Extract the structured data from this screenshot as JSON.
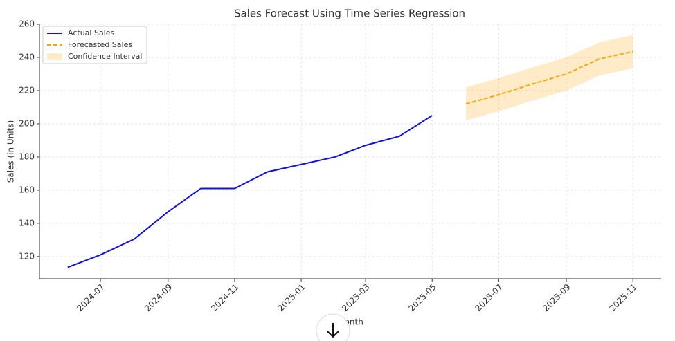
{
  "chart_data": {
    "type": "line",
    "title": "Sales Forecast Using Time Series Regression",
    "x_label": "Month",
    "y_label": "Sales (in Units)",
    "x": [
      "2024-06",
      "2024-07",
      "2024-08",
      "2024-09",
      "2024-10",
      "2024-11",
      "2024-12",
      "2025-01",
      "2025-02",
      "2025-03",
      "2025-04",
      "2025-05",
      "2025-06",
      "2025-07",
      "2025-08",
      "2025-09",
      "2025-10",
      "2025-11"
    ],
    "series": [
      {
        "name": "Actual Sales",
        "color": "#1010e0",
        "style": "solid",
        "values": [
          113.5,
          121,
          130.5,
          147,
          161,
          161,
          171,
          175.5,
          180,
          187,
          192.5,
          205,
          null,
          null,
          null,
          null,
          null,
          null
        ]
      },
      {
        "name": "Forecasted Sales",
        "color": "#ffa500",
        "style": "dashed",
        "values": [
          null,
          null,
          null,
          null,
          null,
          null,
          null,
          null,
          null,
          null,
          null,
          null,
          212,
          217.5,
          224,
          230,
          239,
          243.5
        ]
      }
    ],
    "band": {
      "name": "Confidence Interval",
      "color": "#ffa500",
      "lower": [
        null,
        null,
        null,
        null,
        null,
        null,
        null,
        null,
        null,
        null,
        null,
        null,
        202,
        207.5,
        214,
        220,
        229,
        233.5
      ],
      "upper": [
        null,
        null,
        null,
        null,
        null,
        null,
        null,
        null,
        null,
        null,
        null,
        null,
        222,
        227.5,
        234,
        240,
        249,
        253.5
      ]
    },
    "xticks": [
      "2024-07",
      "2024-09",
      "2024-11",
      "2025-01",
      "2025-03",
      "2025-05",
      "2025-07",
      "2025-09",
      "2025-11"
    ],
    "ylim": [
      106.6,
      260
    ],
    "yticks": [
      120,
      140,
      160,
      180,
      200,
      220,
      240,
      260
    ],
    "grid": true,
    "legend": "upper left"
  }
}
